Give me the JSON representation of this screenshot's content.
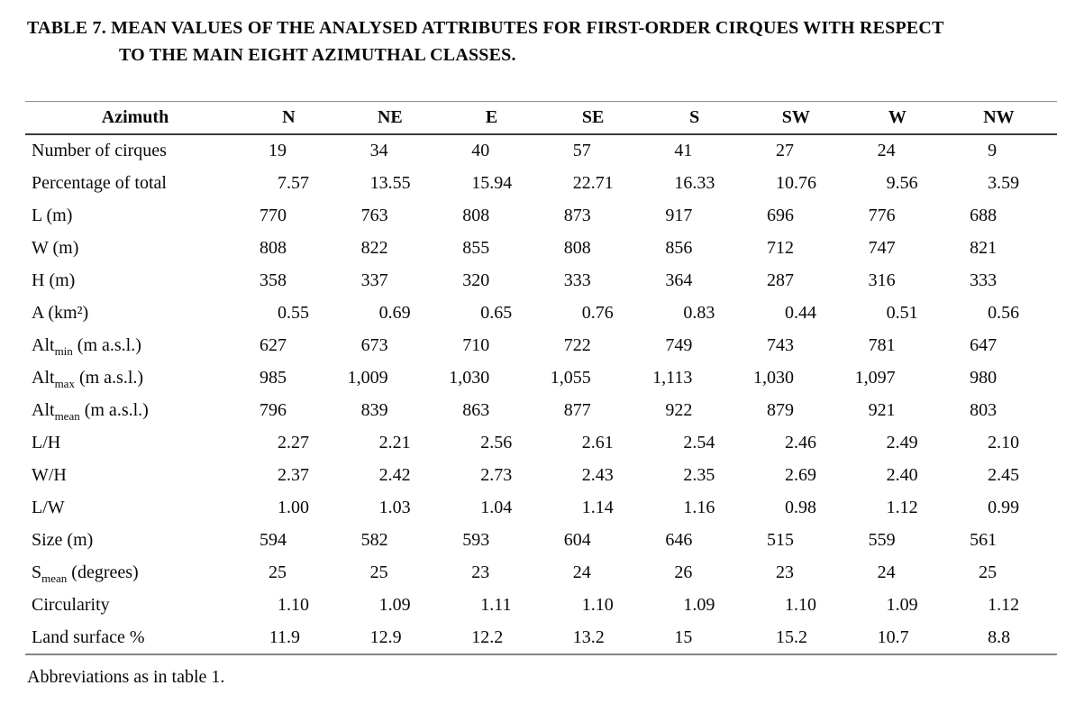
{
  "title": {
    "line1": "TABLE 7. MEAN VALUES OF THE ANALYSED ATTRIBUTES FOR FIRST-ORDER CIRQUES WITH RESPECT",
    "line2": "TO THE MAIN EIGHT AZIMUTHAL CLASSES."
  },
  "table": {
    "header": {
      "label": "Azimuth",
      "columns": [
        "N",
        "NE",
        "E",
        "SE",
        "S",
        "SW",
        "W",
        "NW"
      ]
    },
    "rows": [
      {
        "label": {
          "pre": "Number of cirques",
          "sub": "",
          "post": ""
        },
        "values": [
          "19",
          "34",
          "40",
          "57",
          "41",
          "27",
          "24",
          "9"
        ]
      },
      {
        "label": {
          "pre": "Percentage of total",
          "sub": "",
          "post": ""
        },
        "values": [
          "7.57",
          "13.55",
          "15.94",
          "22.71",
          "16.33",
          "10.76",
          "9.56",
          "3.59"
        ]
      },
      {
        "label": {
          "pre": "L (m)",
          "sub": "",
          "post": ""
        },
        "values": [
          "770",
          "763",
          "808",
          "873",
          "917",
          "696",
          "776",
          "688"
        ]
      },
      {
        "label": {
          "pre": "W (m)",
          "sub": "",
          "post": ""
        },
        "values": [
          "808",
          "822",
          "855",
          "808",
          "856",
          "712",
          "747",
          "821"
        ]
      },
      {
        "label": {
          "pre": "H (m)",
          "sub": "",
          "post": ""
        },
        "values": [
          "358",
          "337",
          "320",
          "333",
          "364",
          "287",
          "316",
          "333"
        ]
      },
      {
        "label": {
          "pre": "A (km²)",
          "sub": "",
          "post": ""
        },
        "values": [
          "0.55",
          "0.69",
          "0.65",
          "0.76",
          "0.83",
          "0.44",
          "0.51",
          "0.56"
        ]
      },
      {
        "label": {
          "pre": "Alt",
          "sub": "min",
          "post": " (m a.s.l.)"
        },
        "values": [
          "627",
          "673",
          "710",
          "722",
          "749",
          "743",
          "781",
          "647"
        ]
      },
      {
        "label": {
          "pre": "Alt",
          "sub": "max",
          "post": " (m a.s.l.)"
        },
        "values": [
          "985",
          "1,009",
          "1,030",
          "1,055",
          "1,113",
          "1,030",
          "1,097",
          "980"
        ]
      },
      {
        "label": {
          "pre": "Alt",
          "sub": "mean",
          "post": " (m a.s.l.)"
        },
        "values": [
          "796",
          "839",
          "863",
          "877",
          "922",
          "879",
          "921",
          "803"
        ]
      },
      {
        "label": {
          "pre": "L/H",
          "sub": "",
          "post": ""
        },
        "values": [
          "2.27",
          "2.21",
          "2.56",
          "2.61",
          "2.54",
          "2.46",
          "2.49",
          "2.10"
        ]
      },
      {
        "label": {
          "pre": "W/H",
          "sub": "",
          "post": ""
        },
        "values": [
          "2.37",
          "2.42",
          "2.73",
          "2.43",
          "2.35",
          "2.69",
          "2.40",
          "2.45"
        ]
      },
      {
        "label": {
          "pre": "L/W",
          "sub": "",
          "post": ""
        },
        "values": [
          "1.00",
          "1.03",
          "1.04",
          "1.14",
          "1.16",
          "0.98",
          "1.12",
          "0.99"
        ]
      },
      {
        "label": {
          "pre": "Size (m)",
          "sub": "",
          "post": ""
        },
        "values": [
          "594",
          "582",
          "593",
          "604",
          "646",
          "515",
          "559",
          "561"
        ]
      },
      {
        "label": {
          "pre": "S",
          "sub": "mean",
          "post": " (degrees)"
        },
        "values": [
          "25",
          "25",
          "23",
          "24",
          "26",
          "23",
          "24",
          "25"
        ]
      },
      {
        "label": {
          "pre": "Circularity",
          "sub": "",
          "post": ""
        },
        "values": [
          "1.10",
          "1.09",
          "1.11",
          "1.10",
          "1.09",
          "1.10",
          "1.09",
          "1.12"
        ]
      },
      {
        "label": {
          "pre": "Land surface %",
          "sub": "",
          "post": ""
        },
        "values": [
          "11.9",
          "12.9",
          "12.2",
          "13.2",
          "15",
          "15.2",
          "10.7",
          "8.8"
        ]
      }
    ]
  },
  "footer": {
    "note": "Abbreviations as in table 1."
  },
  "colors": {
    "rule_top": "#8f8f8f",
    "rule_header": "#3c3c3c",
    "rule_bottom": "#858585",
    "text": "#0a0a0a"
  }
}
